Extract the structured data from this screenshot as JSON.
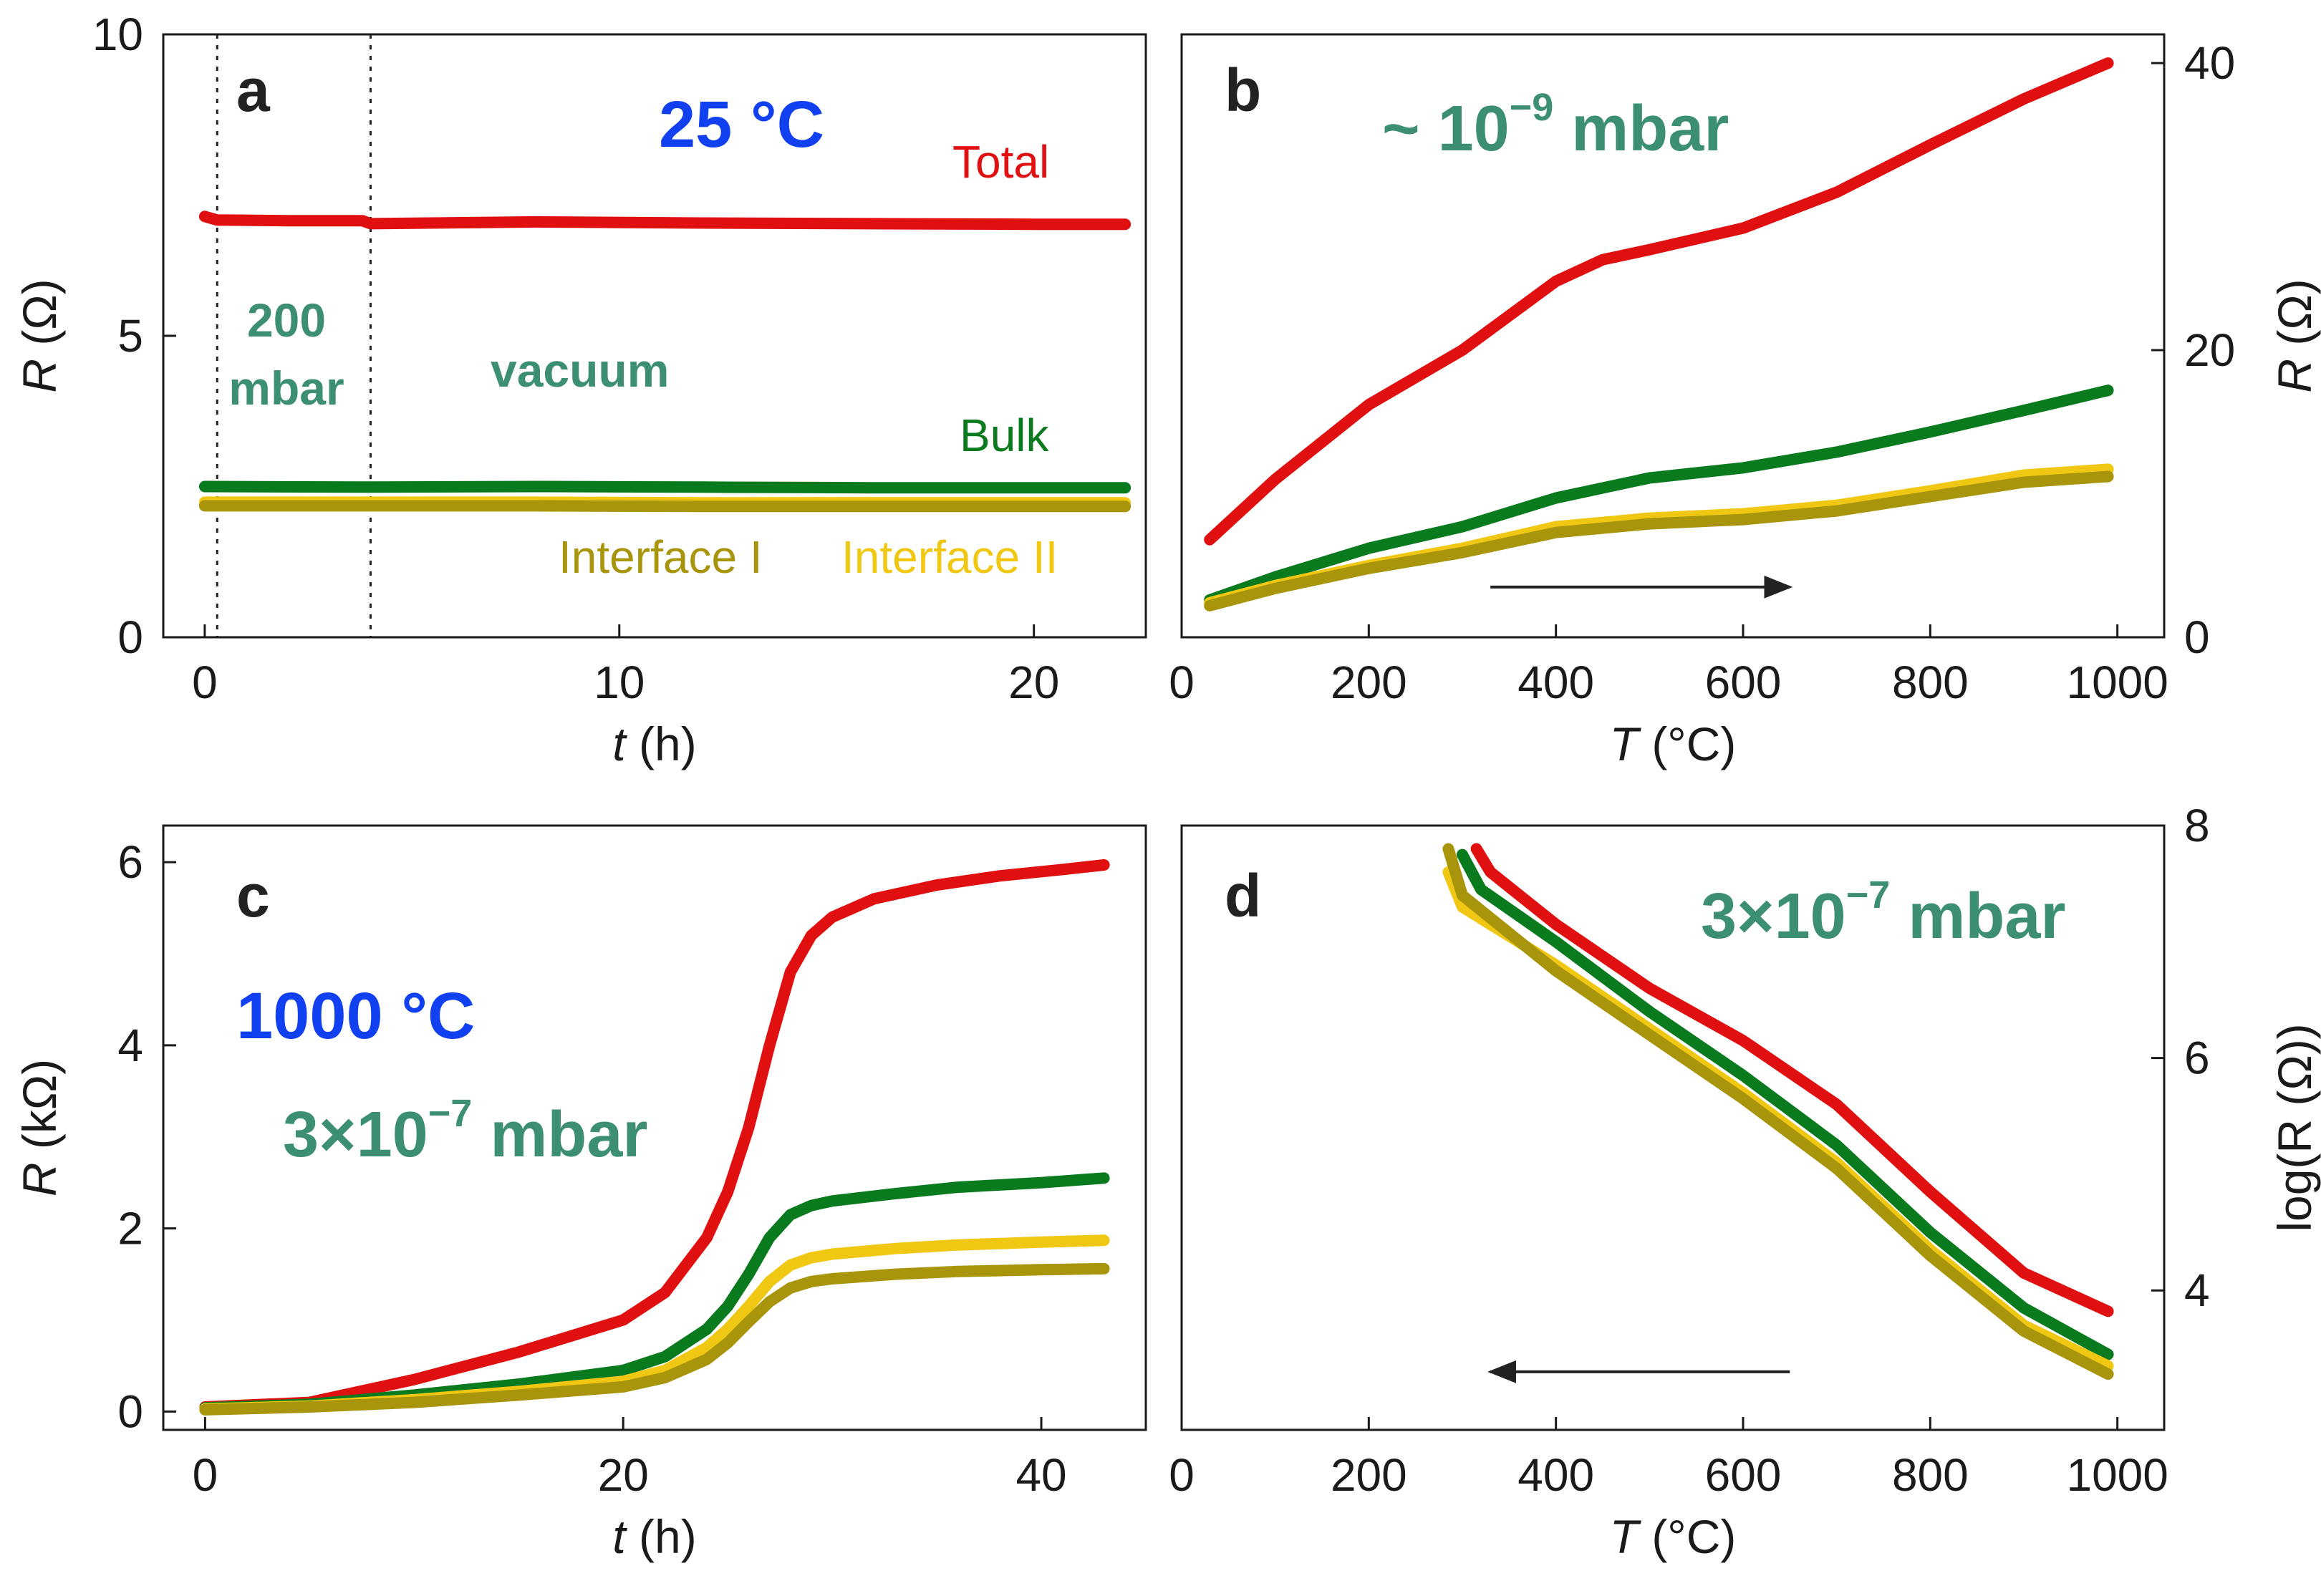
{
  "colors": {
    "total": "#e01010",
    "bulk": "#0a7a1e",
    "interface_i": "#a8950c",
    "interface_ii": "#f0c814",
    "green_text": "#3d8f74",
    "blue_text": "#1040f0",
    "arrow": "#222222",
    "axes": "#1a1a1a"
  },
  "chart_data": [
    {
      "panel": "a",
      "type": "line",
      "title": "",
      "xlabel_var": "t",
      "xlabel_unit": " (h)",
      "ylabel_var": "R",
      "ylabel_unit": " (Ω)",
      "yaxis_side": "left",
      "xlim": [
        -1,
        22.7
      ],
      "ylim": [
        0,
        10
      ],
      "xticks": [
        0,
        10,
        20
      ],
      "yticks": [
        0,
        5,
        10
      ],
      "grid": false,
      "vlines": [
        0.3,
        4
      ],
      "annotations": {
        "temperature": "25 °C",
        "total_label": "Total",
        "pressure_line1": "200",
        "pressure_line2": "mbar",
        "vacuum_label": "vacuum",
        "bulk_label": "Bulk",
        "interface_i_label": "Interface I",
        "interface_ii_label": "Interface II"
      },
      "series": [
        {
          "name": "Total",
          "color_key": "total",
          "x": [
            0,
            0.3,
            2,
            3.8,
            4,
            8,
            12,
            16,
            20,
            22.2
          ],
          "y": [
            6.98,
            6.92,
            6.91,
            6.91,
            6.86,
            6.89,
            6.87,
            6.86,
            6.85,
            6.85
          ]
        },
        {
          "name": "Bulk",
          "color_key": "bulk",
          "x": [
            0,
            4,
            8,
            12,
            16,
            20,
            22.2
          ],
          "y": [
            2.5,
            2.49,
            2.5,
            2.49,
            2.48,
            2.48,
            2.48
          ]
        },
        {
          "name": "Interface II",
          "color_key": "interface_ii",
          "x": [
            0,
            4,
            8,
            12,
            16,
            20,
            22.2
          ],
          "y": [
            2.24,
            2.24,
            2.24,
            2.23,
            2.23,
            2.23,
            2.23
          ]
        },
        {
          "name": "Interface I",
          "color_key": "interface_i",
          "x": [
            0,
            4,
            8,
            12,
            16,
            20,
            22.2
          ],
          "y": [
            2.18,
            2.18,
            2.18,
            2.17,
            2.17,
            2.17,
            2.17
          ]
        }
      ]
    },
    {
      "panel": "b",
      "type": "line",
      "title": "",
      "xlabel_var": "T",
      "xlabel_unit": " (°C)",
      "ylabel_var": "R",
      "ylabel_unit": " (Ω)",
      "yaxis_side": "right",
      "xlim": [
        0,
        1050
      ],
      "ylim": [
        0,
        42
      ],
      "xticks": [
        0,
        200,
        400,
        600,
        800,
        1000
      ],
      "yticks": [
        0,
        20,
        40
      ],
      "grid": false,
      "arrow_direction": "right",
      "arrow_from": [
        330,
        3.5
      ],
      "arrow_to": [
        650,
        3.5
      ],
      "annotations": {
        "pressure_base": "~ 10",
        "pressure_exp": "−9",
        "pressure_unit": " mbar"
      },
      "series": [
        {
          "name": "Total",
          "color_key": "total",
          "x": [
            30,
            100,
            200,
            300,
            400,
            450,
            500,
            600,
            700,
            800,
            900,
            990
          ],
          "y": [
            6.8,
            11,
            16.2,
            20,
            24.8,
            26.3,
            27,
            28.5,
            31,
            34.3,
            37.5,
            40
          ]
        },
        {
          "name": "Bulk",
          "color_key": "bulk",
          "x": [
            30,
            100,
            200,
            300,
            400,
            500,
            600,
            700,
            800,
            900,
            990
          ],
          "y": [
            2.6,
            4.2,
            6.2,
            7.7,
            9.7,
            11.1,
            11.8,
            12.9,
            14.3,
            15.8,
            17.2
          ]
        },
        {
          "name": "Interface II",
          "color_key": "interface_ii",
          "x": [
            30,
            100,
            200,
            300,
            400,
            500,
            600,
            700,
            800,
            900,
            990
          ],
          "y": [
            2.4,
            3.6,
            5.0,
            6.2,
            7.7,
            8.3,
            8.6,
            9.2,
            10.2,
            11.3,
            11.7
          ]
        },
        {
          "name": "Interface I",
          "color_key": "interface_i",
          "x": [
            30,
            100,
            200,
            300,
            400,
            500,
            600,
            700,
            800,
            900,
            990
          ],
          "y": [
            2.2,
            3.4,
            4.8,
            5.9,
            7.3,
            7.9,
            8.2,
            8.8,
            9.8,
            10.8,
            11.2
          ]
        }
      ]
    },
    {
      "panel": "c",
      "type": "line",
      "title": "",
      "xlabel_var": "t",
      "xlabel_unit": " (h)",
      "ylabel_var": "R",
      "ylabel_unit": " (kΩ)",
      "yaxis_side": "left",
      "xlim": [
        -2,
        45
      ],
      "ylim": [
        -0.2,
        6.4
      ],
      "xticks": [
        0,
        20,
        40
      ],
      "yticks": [
        0,
        2,
        4,
        6
      ],
      "grid": false,
      "annotations": {
        "temperature": "1000 °C",
        "pressure_base": "3×10",
        "pressure_exp": "−7",
        "pressure_unit": " mbar"
      },
      "series": [
        {
          "name": "Total",
          "color_key": "total",
          "x": [
            0,
            5,
            10,
            15,
            20,
            22,
            24,
            25,
            26,
            27,
            28,
            29,
            30,
            32,
            35,
            38,
            41,
            43
          ],
          "y": [
            0.05,
            0.1,
            0.35,
            0.65,
            1.0,
            1.3,
            1.9,
            2.4,
            3.1,
            4.0,
            4.8,
            5.2,
            5.4,
            5.6,
            5.75,
            5.85,
            5.92,
            5.97
          ]
        },
        {
          "name": "Bulk",
          "color_key": "bulk",
          "x": [
            0,
            5,
            10,
            15,
            20,
            22,
            24,
            25,
            26,
            27,
            28,
            29,
            30,
            33,
            36,
            40,
            43
          ],
          "y": [
            0.04,
            0.08,
            0.18,
            0.3,
            0.45,
            0.6,
            0.9,
            1.15,
            1.5,
            1.9,
            2.15,
            2.25,
            2.3,
            2.38,
            2.45,
            2.5,
            2.55
          ]
        },
        {
          "name": "Interface II",
          "color_key": "interface_ii",
          "x": [
            0,
            5,
            10,
            15,
            20,
            22,
            24,
            25,
            26,
            27,
            28,
            29,
            30,
            33,
            36,
            40,
            43
          ],
          "y": [
            0.03,
            0.06,
            0.13,
            0.22,
            0.33,
            0.45,
            0.7,
            0.9,
            1.15,
            1.42,
            1.6,
            1.68,
            1.72,
            1.78,
            1.82,
            1.85,
            1.87
          ]
        },
        {
          "name": "Interface I",
          "color_key": "interface_i",
          "x": [
            0,
            5,
            10,
            15,
            20,
            22,
            24,
            25,
            26,
            27,
            28,
            29,
            30,
            33,
            36,
            40,
            43
          ],
          "y": [
            0.02,
            0.05,
            0.1,
            0.18,
            0.27,
            0.37,
            0.57,
            0.75,
            0.98,
            1.2,
            1.35,
            1.42,
            1.45,
            1.5,
            1.53,
            1.55,
            1.56
          ]
        }
      ]
    },
    {
      "panel": "d",
      "type": "line",
      "title": "",
      "xlabel_var": "T",
      "xlabel_unit": " (°C)",
      "ylabel_var": "",
      "ylabel_unit": "log(R (Ω))",
      "yaxis_side": "right",
      "xlim": [
        0,
        1050
      ],
      "ylim": [
        2.8,
        8
      ],
      "xticks": [
        0,
        200,
        400,
        600,
        800,
        1000
      ],
      "yticks": [
        4,
        6,
        8
      ],
      "grid": false,
      "arrow_direction": "left",
      "arrow_from": [
        650,
        3.3
      ],
      "arrow_to": [
        330,
        3.3
      ],
      "annotations": {
        "pressure_base": "3×10",
        "pressure_exp": "−7",
        "pressure_unit": " mbar"
      },
      "series": [
        {
          "name": "Total",
          "color_key": "total",
          "x": [
            315,
            330,
            400,
            500,
            600,
            700,
            800,
            900,
            990
          ],
          "y": [
            7.8,
            7.6,
            7.15,
            6.6,
            6.15,
            5.6,
            4.85,
            4.15,
            3.82
          ]
        },
        {
          "name": "Bulk",
          "color_key": "bulk",
          "x": [
            300,
            320,
            400,
            500,
            600,
            700,
            800,
            900,
            990
          ],
          "y": [
            7.75,
            7.45,
            7.0,
            6.4,
            5.85,
            5.25,
            4.5,
            3.85,
            3.45
          ]
        },
        {
          "name": "Interface II",
          "color_key": "interface_ii",
          "x": [
            285,
            300,
            400,
            500,
            600,
            700,
            800,
            900,
            990
          ],
          "y": [
            7.6,
            7.3,
            6.8,
            6.25,
            5.7,
            5.1,
            4.35,
            3.7,
            3.35
          ]
        },
        {
          "name": "Interface I",
          "color_key": "interface_i",
          "x": [
            285,
            300,
            400,
            500,
            600,
            700,
            800,
            900,
            990
          ],
          "y": [
            7.8,
            7.4,
            6.75,
            6.2,
            5.65,
            5.05,
            4.3,
            3.65,
            3.28
          ]
        }
      ]
    }
  ]
}
